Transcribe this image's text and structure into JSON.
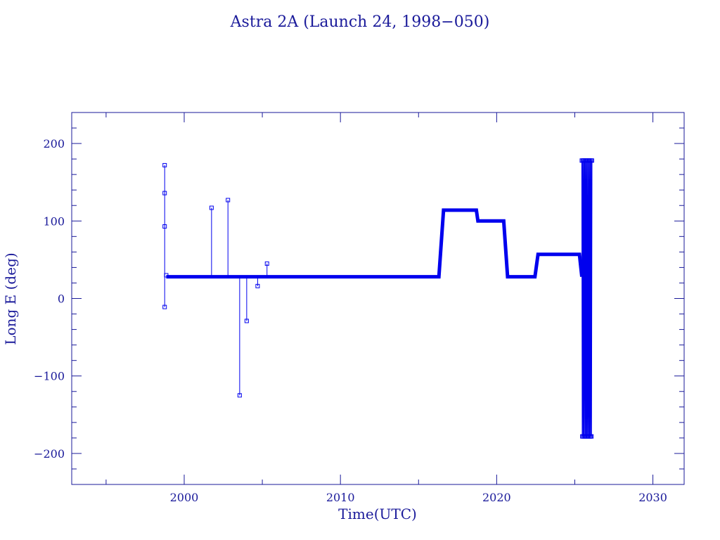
{
  "chart_data": {
    "type": "line",
    "title": "Astra 2A (Launch 24, 1998−050)",
    "xlabel": "Time(UTC)",
    "ylabel": "Long E (deg)",
    "xlim": [
      1992.8,
      2032.0
    ],
    "ylim": [
      -240,
      240
    ],
    "x_ticks": [
      2000,
      2010,
      2020,
      2030
    ],
    "y_ticks": [
      200,
      100,
      0,
      -100,
      -200
    ],
    "x_tick_labels": [
      "2000",
      "2010",
      "2020",
      "2030"
    ],
    "y_tick_labels": [
      "200",
      "100",
      "0",
      "−100",
      "−200"
    ],
    "grid": false,
    "legend": "none",
    "colors": {
      "series": "#0000ee",
      "axes": "#1a1a9a"
    },
    "markers": [
      {
        "x": 1998.75,
        "y": 172
      },
      {
        "x": 1998.75,
        "y": 136
      },
      {
        "x": 1998.75,
        "y": 93
      },
      {
        "x": 1998.75,
        "y": -11
      },
      {
        "x": 1998.85,
        "y": 30
      },
      {
        "x": 2001.75,
        "y": 117
      },
      {
        "x": 2002.8,
        "y": 127
      },
      {
        "x": 2003.55,
        "y": -125
      },
      {
        "x": 2004.0,
        "y": -29
      },
      {
        "x": 2004.7,
        "y": 16
      },
      {
        "x": 2005.3,
        "y": 45
      }
    ],
    "spikes": [
      {
        "x": 1998.75,
        "y": 172
      },
      {
        "x": 1998.75,
        "y": -11
      },
      {
        "x": 2001.75,
        "y": 117
      },
      {
        "x": 2002.8,
        "y": 127
      },
      {
        "x": 2003.55,
        "y": -125
      },
      {
        "x": 2004.0,
        "y": -29
      },
      {
        "x": 2004.7,
        "y": 16
      },
      {
        "x": 2005.3,
        "y": 45
      }
    ],
    "series": [
      {
        "values": [
          {
            "x": 1998.85,
            "y": 28
          },
          {
            "x": 2015.7,
            "y": 28
          },
          {
            "x": 2016.3,
            "y": 28
          },
          {
            "x": 2016.6,
            "y": 114
          },
          {
            "x": 2018.7,
            "y": 114
          },
          {
            "x": 2018.8,
            "y": 100
          },
          {
            "x": 2020.45,
            "y": 100
          },
          {
            "x": 2020.7,
            "y": 28
          },
          {
            "x": 2022.45,
            "y": 28
          },
          {
            "x": 2022.65,
            "y": 57
          },
          {
            "x": 2025.3,
            "y": 57
          },
          {
            "x": 2025.45,
            "y": 28
          }
        ]
      }
    ],
    "oscillation": {
      "x_start": 2025.45,
      "x_end": 2026.1,
      "y_min": -178,
      "y_max": 178
    }
  }
}
